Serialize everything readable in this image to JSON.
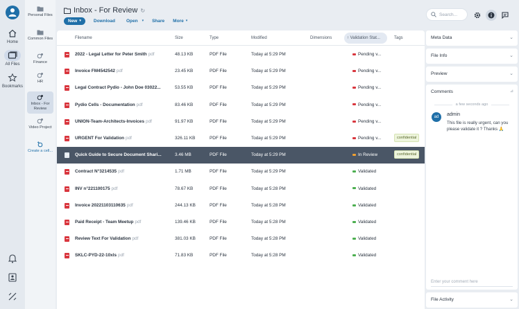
{
  "nav": {
    "items": [
      {
        "label": "Home",
        "icon": "home-icon"
      },
      {
        "label": "All Files",
        "icon": "files-icon"
      },
      {
        "label": "Bookmarks",
        "icon": "bookmark-icon"
      }
    ]
  },
  "workspaces": [
    {
      "label": "Personal Files"
    },
    {
      "label": "Common Files"
    },
    {
      "label": "Finance"
    },
    {
      "label": "HR"
    },
    {
      "label": "Inbox - For Review"
    },
    {
      "label": "Video Project"
    },
    {
      "label": "Create a cell..."
    }
  ],
  "header": {
    "title": "Inbox - For Review"
  },
  "toolbar": {
    "new_label": "New",
    "download_label": "Download",
    "open_label": "Open",
    "share_label": "Share",
    "more_label": "More"
  },
  "table": {
    "columns": [
      "Filename",
      "Size",
      "Type",
      "Modified",
      "Dimensions",
      "Validation Stat...",
      "Tags"
    ],
    "rows": [
      {
        "name": "2022 - Legal Letter for Peter Smith",
        "ext": "pdf",
        "size": "48.13 KB",
        "type": "PDF File",
        "modified": "Today at 5:29 PM",
        "status": "Pending v...",
        "status_color": "#d9363e",
        "tag": ""
      },
      {
        "name": "Invoice FM4542542",
        "ext": "pdf",
        "size": "23.45 KB",
        "type": "PDF File",
        "modified": "Today at 5:29 PM",
        "status": "Pending v...",
        "status_color": "#d9363e",
        "tag": ""
      },
      {
        "name": "Legal Contract Pydio - John Doe 03022...",
        "ext": "",
        "size": "53.55 KB",
        "type": "PDF File",
        "modified": "Today at 5:29 PM",
        "status": "Pending v...",
        "status_color": "#d9363e",
        "tag": ""
      },
      {
        "name": "Pydio Cells - Documentation",
        "ext": "pdf",
        "size": "83.46 KB",
        "type": "PDF File",
        "modified": "Today at 5:29 PM",
        "status": "Pending v...",
        "status_color": "#d9363e",
        "tag": ""
      },
      {
        "name": "UNION-Team-Architects-Invoices",
        "ext": "pdf",
        "size": "91.97 KB",
        "type": "PDF File",
        "modified": "Today at 5:29 PM",
        "status": "Pending v...",
        "status_color": "#d9363e",
        "tag": ""
      },
      {
        "name": "URGENT For Validation",
        "ext": "pdf",
        "size": "326.11 KB",
        "type": "PDF File",
        "modified": "Today at 5:29 PM",
        "status": "Pending v...",
        "status_color": "#d9363e",
        "tag": "confidential"
      },
      {
        "name": "Quick Guide to Secure Document Shari...",
        "ext": "",
        "size": "3.46 MB",
        "type": "PDF File",
        "modified": "Today at 5:29 PM",
        "status": "In Review",
        "status_color": "#f0a030",
        "tag": "confidential",
        "selected": true
      },
      {
        "name": "Contract N°3214535",
        "ext": "pdf",
        "size": "1.71 MB",
        "type": "PDF File",
        "modified": "Today at 5:29 PM",
        "status": "Validated",
        "status_color": "#4caf50",
        "tag": ""
      },
      {
        "name": "INV n°221100175",
        "ext": "pdf",
        "size": "78.67 KB",
        "type": "PDF File",
        "modified": "Today at 5:28 PM",
        "status": "Validated",
        "status_color": "#4caf50",
        "tag": ""
      },
      {
        "name": "Invoice 20221103110635",
        "ext": "pdf",
        "size": "244.13 KB",
        "type": "PDF File",
        "modified": "Today at 5:28 PM",
        "status": "Validated",
        "status_color": "#4caf50",
        "tag": ""
      },
      {
        "name": "Paid Receipt - Team Meetup",
        "ext": "pdf",
        "size": "139.46 KB",
        "type": "PDF File",
        "modified": "Today at 5:28 PM",
        "status": "Validated",
        "status_color": "#4caf50",
        "tag": ""
      },
      {
        "name": "Review Text For Validation",
        "ext": "pdf",
        "size": "381.03 KB",
        "type": "PDF File",
        "modified": "Today at 5:28 PM",
        "status": "Validated",
        "status_color": "#4caf50",
        "tag": ""
      },
      {
        "name": "SKLC-PYD-22-10xls",
        "ext": "pdf",
        "size": "71.83 KB",
        "type": "PDF File",
        "modified": "Today at 5:28 PM",
        "status": "Validated",
        "status_color": "#4caf50",
        "tag": ""
      }
    ]
  },
  "search": {
    "placeholder": "Search..."
  },
  "side_panels": {
    "meta": "Meta Data",
    "info": "File Info",
    "preview": "Preview",
    "comments": "Comments",
    "activity": "File Activity"
  },
  "comment": {
    "time": "a few seconds ago",
    "avatar": "ad",
    "user": "admin",
    "text": "This file is really urgent, can you please validate it ? Thanks 🙏",
    "input_placeholder": "Enter your comment here"
  },
  "colors": {
    "accent": "#1f6fa8",
    "selected_row": "#4a5666"
  }
}
